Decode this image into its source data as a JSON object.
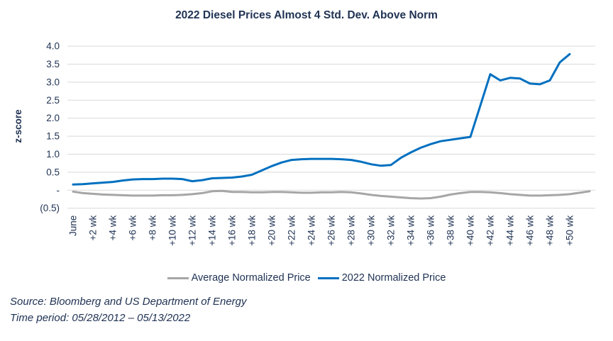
{
  "title": "2022 Diesel Prices Almost 4 Std. Dev. Above Norm",
  "colors": {
    "text_navy": "#203354",
    "blue_series": "#0070C0",
    "gray_series": "#A6A6A6",
    "gridline": "#D9D9D9"
  },
  "legend": [
    {
      "label": "Average Normalized Price",
      "color": "#A6A6A6"
    },
    {
      "label": "2022 Normalized Price",
      "color": "#0070C0"
    }
  ],
  "footnotes": {
    "source": "Source: Bloomberg and US Department of Energy",
    "time_period": "Time period: 05/28/2012 – 05/13/2022"
  },
  "chart_data": {
    "type": "line",
    "title": "2022 Diesel Prices Almost 4 Std. Dev. Above Norm",
    "xlabel": "",
    "ylabel": "z-score",
    "ylim": [
      -0.5,
      4.0
    ],
    "ytick_step": 0.5,
    "ytick_labels_top_to_bottom": [
      "4.0",
      "3.5",
      "3.0",
      "2.5",
      "2.0",
      "1.5",
      "1.0",
      "0.5",
      "-",
      "(0.5)"
    ],
    "grid": "horizontal-only",
    "legend_position": "bottom",
    "x_unit": "weeks after start (June), weekly data, tick every 2 weeks",
    "xtick_labels": [
      "June",
      "+2 wk",
      "+4 wk",
      "+6 wk",
      "+8 wk",
      "+10 wk",
      "+12 wk",
      "+14 wk",
      "+16 wk",
      "+18 wk",
      "+20 wk",
      "+22 wk",
      "+24 wk",
      "+26 wk",
      "+28 wk",
      "+30 wk",
      "+32 wk",
      "+34 wk",
      "+36 wk",
      "+38 wk",
      "+40 wk",
      "+42 wk",
      "+44 wk",
      "+46 wk",
      "+48 wk",
      "+50 wk"
    ],
    "xtick_week_step": 2,
    "series": [
      {
        "name": "Average Normalized Price",
        "color": "#A6A6A6",
        "start_week": 0,
        "week_step": 1,
        "values": [
          -0.04,
          -0.08,
          -0.1,
          -0.12,
          -0.13,
          -0.14,
          -0.15,
          -0.15,
          -0.15,
          -0.14,
          -0.14,
          -0.13,
          -0.11,
          -0.08,
          -0.03,
          -0.02,
          -0.05,
          -0.05,
          -0.06,
          -0.06,
          -0.05,
          -0.05,
          -0.06,
          -0.07,
          -0.07,
          -0.06,
          -0.06,
          -0.05,
          -0.06,
          -0.09,
          -0.13,
          -0.16,
          -0.18,
          -0.2,
          -0.22,
          -0.23,
          -0.22,
          -0.18,
          -0.12,
          -0.08,
          -0.05,
          -0.05,
          -0.06,
          -0.08,
          -0.11,
          -0.13,
          -0.15,
          -0.15,
          -0.14,
          -0.13,
          -0.11,
          -0.07,
          -0.03
        ]
      },
      {
        "name": "2022 Normalized Price",
        "color": "#0070C0",
        "start_week": 0,
        "week_step": 1,
        "values": [
          0.16,
          0.17,
          0.19,
          0.21,
          0.23,
          0.27,
          0.3,
          0.31,
          0.31,
          0.32,
          0.32,
          0.31,
          0.25,
          0.28,
          0.33,
          0.34,
          0.35,
          0.38,
          0.43,
          0.55,
          0.67,
          0.77,
          0.84,
          0.86,
          0.87,
          0.87,
          0.87,
          0.86,
          0.84,
          0.79,
          0.72,
          0.68,
          0.7,
          0.9,
          1.05,
          1.18,
          1.28,
          1.36,
          1.4,
          1.44,
          1.48,
          2.35,
          3.22,
          3.05,
          3.12,
          3.1,
          2.96,
          2.94,
          3.05,
          3.55,
          3.78
        ]
      }
    ]
  }
}
